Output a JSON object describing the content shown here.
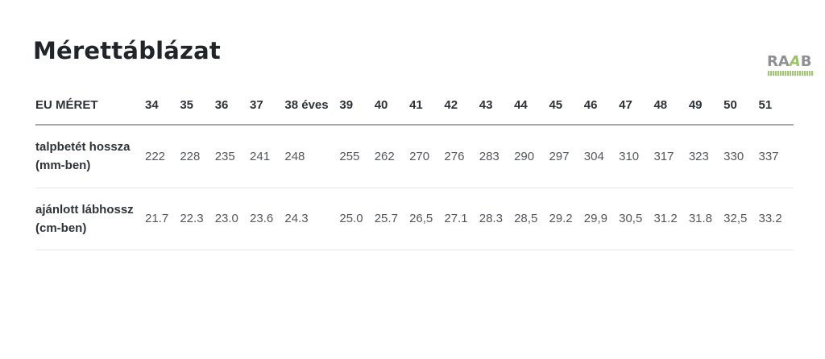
{
  "page": {
    "title": "Mérettáblázat"
  },
  "logo": {
    "part1": "RA",
    "part2": "A",
    "part3": "B",
    "text_color": "#8e9094",
    "accent_color": "#9cc36a",
    "bar_color": "#a2c479"
  },
  "table": {
    "header": {
      "label": "EU MÉRET",
      "sizes": [
        "34",
        "35",
        "36",
        "37",
        "38 éves",
        "39",
        "40",
        "41",
        "42",
        "43",
        "44",
        "45",
        "46",
        "47",
        "48",
        "49",
        "50",
        "51"
      ]
    },
    "rows": [
      {
        "label": "talpbetét hossza",
        "unit": "(mm-ben)",
        "values": [
          "222",
          "228",
          "235",
          "241",
          "248",
          "255",
          "262",
          "270",
          "276",
          "283",
          "290",
          "297",
          "304",
          "310",
          "317",
          "323",
          "330",
          "337"
        ]
      },
      {
        "label": "ajánlott lábhossz",
        "unit": "(cm-ben)",
        "values": [
          "21.7",
          "22.3",
          "23.0",
          "23.6",
          "24.3",
          "25.0",
          "25.7",
          "26,5",
          "27.1",
          "28.3",
          "28,5",
          "29.2",
          "29,9",
          "30,5",
          "31.2",
          "31.8",
          "32,5",
          "33.2"
        ]
      }
    ]
  }
}
